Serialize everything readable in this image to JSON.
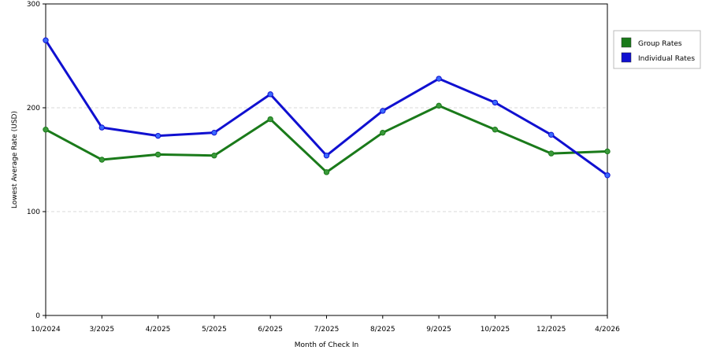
{
  "chart_data": {
    "type": "line",
    "title": "",
    "xlabel": "Month of Check In",
    "ylabel": "Lowest Average Rate (USD)",
    "ylim": [
      0,
      300
    ],
    "yticks": [
      0,
      100,
      200,
      300
    ],
    "grid": "horizontal dashed",
    "legend": "top-right, outside plot",
    "categories": [
      "10/2024",
      "3/2025",
      "4/2025",
      "5/2025",
      "6/2025",
      "7/2025",
      "8/2025",
      "9/2025",
      "10/2025",
      "12/2025",
      "4/2026"
    ],
    "series": [
      {
        "name": "Group Rates",
        "color": "#1a7a1a",
        "marker_color": "#3a9a3a",
        "values": [
          179,
          150,
          155,
          154,
          189,
          138,
          176,
          202,
          179,
          156,
          158
        ]
      },
      {
        "name": "Individual Rates",
        "color": "#1010d0",
        "marker_color": "#3a6aff",
        "values": [
          265,
          181,
          173,
          176,
          213,
          154,
          197,
          228,
          205,
          174,
          135
        ]
      }
    ]
  }
}
